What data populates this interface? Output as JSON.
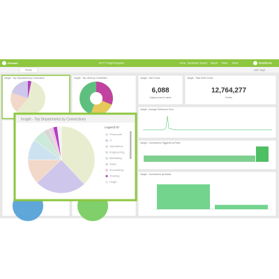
{
  "header": {
    "logo": "FlexNet",
    "title": "HCI™ Insight Analytics",
    "nav": [
      "Home",
      "Dashboard",
      "Search",
      "Report",
      "Rules",
      "About"
    ],
    "brand": "SmartDesk"
  },
  "tabs": [
    "Panels"
  ],
  "toolbar": "Last 7 days",
  "panels": [
    "Insight - Top Departments by Connection",
    "Insight - Top Users by Connection",
    "Insight - User Count",
    "Insight - Total Event Count",
    "Insight - Average Events per Hour",
    "Insight - Connections Triggered by Rules",
    "Insight - Connections by Status"
  ],
  "metrics": [
    {
      "value": "6,088",
      "label": "Unique count of users"
    },
    {
      "value": "12,764,277",
      "label": "Events"
    }
  ],
  "zoom_chart": {
    "type": "pie",
    "title": "Insight - Top Departments by Connections",
    "legend_title": "Legend ID",
    "categories": [
      "Personnel",
      "IT",
      "Operations",
      "Engineering",
      "Marketing",
      "Sales",
      "Accounting",
      "Training",
      "Legal"
    ],
    "values": [
      38,
      25,
      12,
      10,
      6,
      3,
      2,
      2,
      2
    ],
    "colors": [
      "#e9edcf",
      "#cfc6ec",
      "#f2d8c8",
      "#cde2f0",
      "#cbead9",
      "#d8d8d8",
      "#efc8e2",
      "#b23fc0",
      "#f3f3f3"
    ]
  },
  "status_chart": {
    "type": "bar",
    "values": [
      85,
      15
    ],
    "ylim": [
      0,
      100
    ],
    "color": "#72d48d"
  }
}
